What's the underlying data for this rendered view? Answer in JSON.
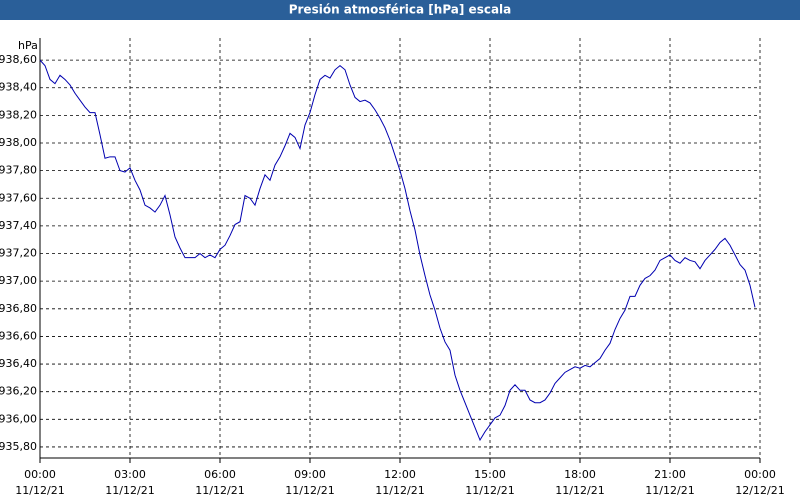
{
  "chart_data": {
    "type": "line",
    "title": "Presión atmosférica [hPa] escala",
    "ylabel": "hPa",
    "x": [
      0,
      10,
      20,
      30,
      40,
      50,
      60,
      70,
      80,
      90,
      100,
      110,
      120,
      130,
      140,
      150,
      160,
      170,
      180,
      190,
      200,
      210,
      220,
      230,
      240,
      250,
      260,
      270,
      280,
      290,
      300,
      310,
      320,
      330,
      340,
      350,
      360,
      370,
      380,
      390,
      400,
      410,
      420,
      430,
      440,
      450,
      460,
      470,
      480,
      490,
      500,
      510,
      520,
      530,
      540,
      550,
      560,
      570,
      580,
      590,
      600,
      610,
      620,
      630,
      640,
      650,
      660,
      670,
      680,
      690,
      700,
      710,
      720,
      730,
      740,
      750,
      760,
      770,
      780,
      790,
      800,
      810,
      820,
      830,
      840,
      850,
      860,
      870,
      880,
      890,
      900,
      910,
      920,
      930,
      940,
      950,
      960,
      970,
      980,
      990,
      1000,
      1010,
      1020,
      1030,
      1040,
      1050,
      1060,
      1070,
      1080,
      1090,
      1100,
      1110,
      1120,
      1130,
      1140,
      1150,
      1160,
      1170,
      1180,
      1190,
      1200,
      1210,
      1220,
      1230,
      1240,
      1250,
      1260,
      1270,
      1280,
      1290,
      1300,
      1310,
      1320,
      1330,
      1340,
      1350,
      1360,
      1370,
      1380,
      1390,
      1400,
      1410,
      1420,
      1430
    ],
    "series": [
      {
        "name": "Presión",
        "color": "#0000b0",
        "values": [
          938.6,
          938.56,
          938.46,
          938.43,
          938.49,
          938.46,
          938.42,
          938.36,
          938.31,
          938.26,
          938.22,
          938.22,
          938.06,
          937.89,
          937.9,
          937.9,
          937.8,
          937.79,
          937.82,
          937.73,
          937.66,
          937.55,
          937.53,
          937.5,
          937.55,
          937.62,
          937.48,
          937.32,
          937.24,
          937.17,
          937.17,
          937.17,
          937.2,
          937.17,
          937.19,
          937.17,
          937.23,
          937.26,
          937.33,
          937.41,
          937.43,
          937.62,
          937.6,
          937.55,
          937.67,
          937.77,
          937.73,
          937.84,
          937.9,
          937.98,
          938.07,
          938.04,
          937.96,
          938.13,
          938.22,
          938.35,
          938.46,
          938.49,
          938.47,
          938.53,
          938.56,
          938.53,
          938.42,
          938.33,
          938.3,
          938.31,
          938.29,
          938.24,
          938.18,
          938.11,
          938.02,
          937.91,
          937.8,
          937.67,
          937.51,
          937.37,
          937.19,
          937.04,
          936.9,
          936.79,
          936.66,
          936.56,
          936.5,
          936.32,
          936.21,
          936.12,
          936.03,
          935.94,
          935.85,
          935.91,
          935.96,
          936.01,
          936.03,
          936.1,
          936.21,
          936.25,
          936.21,
          936.21,
          936.14,
          936.12,
          936.12,
          936.14,
          936.19,
          936.26,
          936.3,
          936.34,
          936.36,
          936.38,
          936.37,
          936.39,
          936.38,
          936.41,
          936.44,
          936.5,
          936.55,
          936.65,
          936.73,
          936.79,
          936.89,
          936.89,
          936.97,
          937.02,
          937.04,
          937.08,
          937.15,
          937.17,
          937.19,
          937.15,
          937.13,
          937.17,
          937.15,
          937.14,
          937.09,
          937.15,
          937.19,
          937.23,
          937.28,
          937.31,
          937.26,
          937.19,
          937.12,
          937.08,
          936.97,
          936.81
        ]
      }
    ],
    "xlim": [
      0,
      1440
    ],
    "xticks": [
      {
        "value": 0,
        "label": "00:00"
      },
      {
        "value": 180,
        "label": "03:00"
      },
      {
        "value": 360,
        "label": "06:00"
      },
      {
        "value": 540,
        "label": "09:00"
      },
      {
        "value": 720,
        "label": "12:00"
      },
      {
        "value": 900,
        "label": "15:00"
      },
      {
        "value": 1080,
        "label": "18:00"
      },
      {
        "value": 1260,
        "label": "21:00"
      },
      {
        "value": 1440,
        "label": "00:00"
      }
    ],
    "xtick_dates": [
      "11/12/21",
      "11/12/21",
      "11/12/21",
      "11/12/21",
      "11/12/21",
      "11/12/21",
      "11/12/21",
      "11/12/21",
      "12/12/21"
    ],
    "ylim": [
      935.72,
      938.76
    ],
    "yticks": [
      {
        "value": 935.8,
        "label": "935,80"
      },
      {
        "value": 936.0,
        "label": "936,00"
      },
      {
        "value": 936.2,
        "label": "936,20"
      },
      {
        "value": 936.4,
        "label": "936,40"
      },
      {
        "value": 936.6,
        "label": "936,60"
      },
      {
        "value": 936.8,
        "label": "936,80"
      },
      {
        "value": 937.0,
        "label": "937,00"
      },
      {
        "value": 937.2,
        "label": "937,20"
      },
      {
        "value": 937.4,
        "label": "937,40"
      },
      {
        "value": 937.6,
        "label": "937,60"
      },
      {
        "value": 937.8,
        "label": "937,80"
      },
      {
        "value": 938.0,
        "label": "938,00"
      },
      {
        "value": 938.2,
        "label": "938,20"
      },
      {
        "value": 938.4,
        "label": "938,40"
      },
      {
        "value": 938.6,
        "label": "938,60"
      }
    ],
    "grid": true
  }
}
